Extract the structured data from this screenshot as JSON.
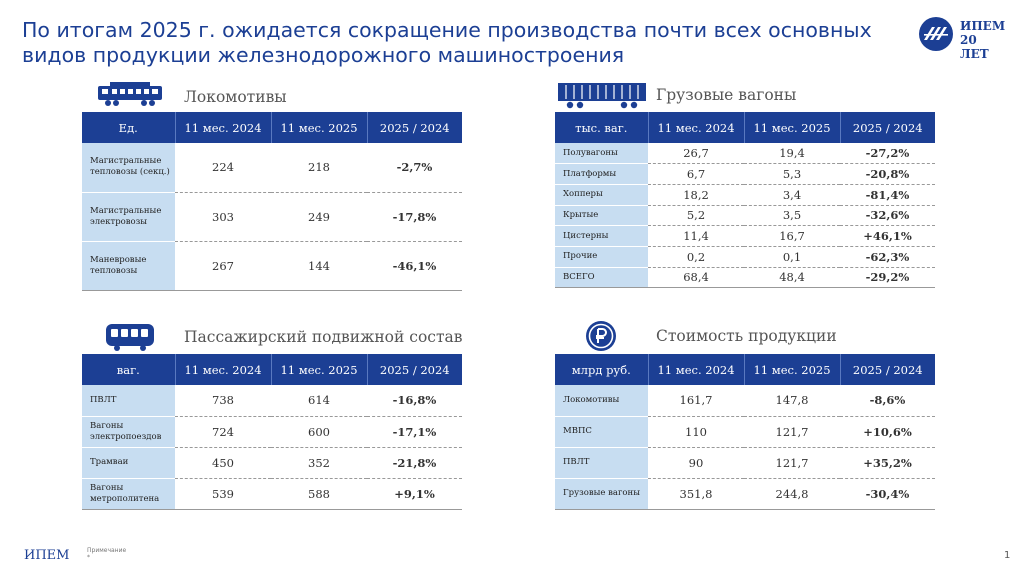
{
  "title": "По итогам 2025 г. ожидается сокращение производства почти всех основных видов продукции железнодорожного машиностроения",
  "logo": {
    "line1": "ИПЕМ",
    "line2": "20 ЛЕТ"
  },
  "colors": {
    "accent": "#1c3f94",
    "label_bg": "#c7ddf1",
    "negative": "#c0262c",
    "positive": "#3f8b2f"
  },
  "sections": {
    "locomotives": {
      "label": "Локомотивы",
      "icon": "locomotive-icon",
      "headers": [
        "Ед.",
        "11 мес. 2024",
        "11 мес. 2025",
        "2025 / 2024"
      ],
      "rows": [
        {
          "name": "Магистральные тепловозы (секц.)",
          "v2024": "224",
          "v2025": "218",
          "change": "-2,7%"
        },
        {
          "name": "Магистральные электровозы",
          "v2024": "303",
          "v2025": "249",
          "change": "-17,8%"
        },
        {
          "name": "Маневровые тепловозы",
          "v2024": "267",
          "v2025": "144",
          "change": "-46,1%"
        }
      ]
    },
    "freight": {
      "label": "Грузовые вагоны",
      "icon": "freight-wagon-icon",
      "headers": [
        "тыс. ваг.",
        "11 мес. 2024",
        "11 мес. 2025",
        "2025 / 2024"
      ],
      "rows": [
        {
          "name": "Полувагоны",
          "v2024": "26,7",
          "v2025": "19,4",
          "change": "-27,2%"
        },
        {
          "name": "Платформы",
          "v2024": "6,7",
          "v2025": "5,3",
          "change": "-20,8%"
        },
        {
          "name": "Хопперы",
          "v2024": "18,2",
          "v2025": "3,4",
          "change": "-81,4%"
        },
        {
          "name": "Крытые",
          "v2024": "5,2",
          "v2025": "3,5",
          "change": "-32,6%"
        },
        {
          "name": "Цистерны",
          "v2024": "11,4",
          "v2025": "16,7",
          "change": "+46,1%"
        },
        {
          "name": "Прочие",
          "v2024": "0,2",
          "v2025": "0,1",
          "change": "-62,3%"
        },
        {
          "name": "ВСЕГО",
          "v2024": "68,4",
          "v2025": "48,4",
          "change": "-29,2%"
        }
      ]
    },
    "passenger": {
      "label": "Пассажирский подвижной состав",
      "icon": "passenger-car-icon",
      "headers": [
        "ваг.",
        "11 мес. 2024",
        "11 мес. 2025",
        "2025 / 2024"
      ],
      "rows": [
        {
          "name": "ПВЛТ",
          "v2024": "738",
          "v2025": "614",
          "change": "-16,8%"
        },
        {
          "name": "Вагоны электропоездов",
          "v2024": "724",
          "v2025": "600",
          "change": "-17,1%"
        },
        {
          "name": "Трамваи",
          "v2024": "450",
          "v2025": "352",
          "change": "-21,8%"
        },
        {
          "name": "Вагоны метрополитена",
          "v2024": "539",
          "v2025": "588",
          "change": "+9,1%"
        }
      ]
    },
    "value": {
      "label": "Стоимость продукции",
      "icon": "ruble-icon",
      "headers": [
        "млрд руб.",
        "11 мес. 2024",
        "11 мес. 2025",
        "2025 / 2024"
      ],
      "rows": [
        {
          "name": "Локомотивы",
          "v2024": "161,7",
          "v2025": "147,8",
          "change": "-8,6%"
        },
        {
          "name": "МВПС",
          "v2024": "110",
          "v2025": "121,7",
          "change": "+10,6%"
        },
        {
          "name": "ПВЛТ",
          "v2024": "90",
          "v2025": "121,7",
          "change": "+35,2%"
        },
        {
          "name": "Грузовые вагоны",
          "v2024": "351,8",
          "v2025": "244,8",
          "change": "-30,4%"
        }
      ]
    }
  },
  "footer": {
    "brand": "ИПЕМ",
    "note_label": "Примечание",
    "note_marker": "*",
    "page": "1"
  }
}
